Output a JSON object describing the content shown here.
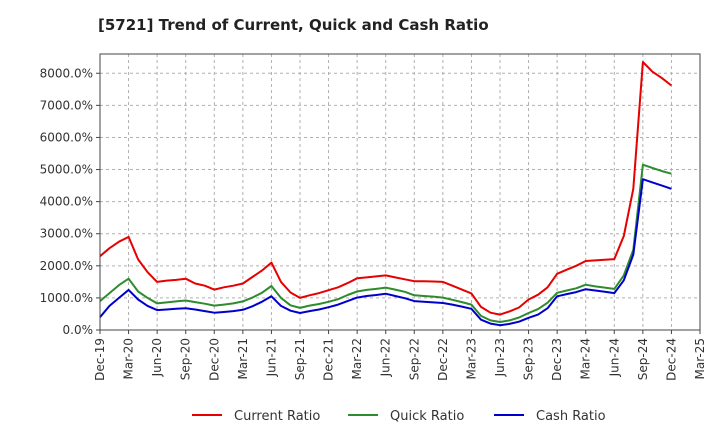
{
  "chart_data": {
    "type": "line",
    "title": "[5721]  Trend of Current, Quick and Cash Ratio",
    "xlabel": "",
    "ylabel": "",
    "ylim": [
      0,
      8600
    ],
    "yticks": [
      0,
      1000,
      2000,
      3000,
      4000,
      5000,
      6000,
      7000,
      8000
    ],
    "ytick_labels": [
      "0.0%",
      "1000.0%",
      "2000.0%",
      "3000.0%",
      "4000.0%",
      "5000.0%",
      "6000.0%",
      "7000.0%",
      "8000.0%"
    ],
    "xtick_labels": [
      "Dec-19",
      "Mar-20",
      "Jun-20",
      "Sep-20",
      "Dec-20",
      "Mar-21",
      "Jun-21",
      "Sep-21",
      "Dec-21",
      "Mar-22",
      "Jun-22",
      "Sep-22",
      "Dec-22",
      "Mar-23",
      "Jun-23",
      "Sep-23",
      "Dec-23",
      "Mar-24",
      "Jun-24",
      "Sep-24",
      "Dec-24",
      "Mar-25"
    ],
    "grid": true,
    "legend_position": "bottom",
    "series": [
      {
        "name": "Current Ratio",
        "color": "#e60000",
        "values": [
          2300,
          2550,
          2750,
          2900,
          2200,
          1800,
          1500,
          1540,
          1560,
          1600,
          1450,
          1380,
          1260,
          1330,
          1380,
          1450,
          1650,
          1850,
          2100,
          1500,
          1170,
          1000,
          1080,
          1150,
          1240,
          1330,
          1460,
          1610,
          1640,
          1670,
          1700,
          1640,
          1580,
          1520,
          1520,
          1510,
          1500,
          1380,
          1260,
          1140,
          720,
          540,
          480,
          580,
          700,
          950,
          1100,
          1330,
          1750,
          1880,
          2000,
          2150,
          2170,
          2190,
          2210,
          2930,
          4400,
          8350,
          8050,
          7850,
          7620
        ]
      },
      {
        "name": "Quick Ratio",
        "color": "#2e8b2e",
        "values": [
          900,
          1150,
          1400,
          1600,
          1200,
          1000,
          830,
          860,
          890,
          920,
          870,
          820,
          760,
          790,
          830,
          890,
          1010,
          1160,
          1370,
          1000,
          770,
          690,
          760,
          810,
          880,
          960,
          1090,
          1200,
          1250,
          1280,
          1320,
          1260,
          1190,
          1080,
          1060,
          1040,
          1010,
          940,
          870,
          790,
          440,
          300,
          250,
          300,
          390,
          530,
          650,
          850,
          1160,
          1230,
          1300,
          1410,
          1360,
          1320,
          1280,
          1700,
          2500,
          5150,
          5050,
          4950,
          4870
        ]
      },
      {
        "name": "Cash Ratio",
        "color": "#0000cc",
        "values": [
          400,
          750,
          1000,
          1250,
          950,
          750,
          620,
          640,
          660,
          680,
          640,
          590,
          540,
          560,
          590,
          630,
          740,
          880,
          1050,
          750,
          600,
          530,
          590,
          640,
          710,
          790,
          900,
          1010,
          1060,
          1090,
          1130,
          1060,
          990,
          900,
          880,
          860,
          840,
          790,
          730,
          660,
          320,
          200,
          150,
          190,
          260,
          380,
          480,
          680,
          1050,
          1120,
          1180,
          1270,
          1230,
          1190,
          1150,
          1550,
          2350,
          4700,
          4600,
          4500,
          4400
        ]
      }
    ]
  }
}
